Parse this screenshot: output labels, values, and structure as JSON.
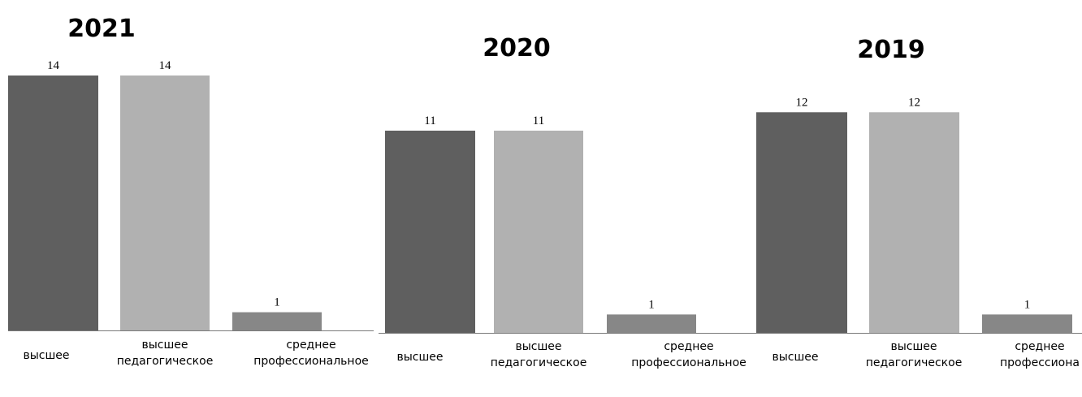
{
  "colors": {
    "series": [
      "#5f5f5f",
      "#b1b1b1",
      "#878787"
    ],
    "axis": "#7a7a7a"
  },
  "chart_data": [
    {
      "type": "bar",
      "title": "2021",
      "categories": [
        "высшее",
        "высшее педагогическое",
        "среднее профессиональное"
      ],
      "category_lines": [
        [
          "высшее"
        ],
        [
          "высшее",
          "педагогическое"
        ],
        [
          "среднее",
          "профессиональное"
        ]
      ],
      "values": [
        14,
        14,
        1
      ],
      "ylim": [
        0,
        14
      ]
    },
    {
      "type": "bar",
      "title": "2020",
      "categories": [
        "высшее",
        "высшее педагогическое",
        "среднее профессиональное"
      ],
      "category_lines": [
        [
          "высшее"
        ],
        [
          "высшее",
          "педагогическое"
        ],
        [
          "среднее",
          "профессиональное"
        ]
      ],
      "values": [
        11,
        11,
        1
      ],
      "ylim": [
        0,
        14
      ]
    },
    {
      "type": "bar",
      "title": "2019",
      "categories": [
        "высшее",
        "высшее педагогическое",
        "среднее профессиона"
      ],
      "category_lines": [
        [
          "высшее"
        ],
        [
          "высшее",
          "педагогическое"
        ],
        [
          "среднее",
          "профессиона"
        ]
      ],
      "values": [
        12,
        12,
        1
      ],
      "ylim": [
        0,
        14
      ]
    }
  ]
}
